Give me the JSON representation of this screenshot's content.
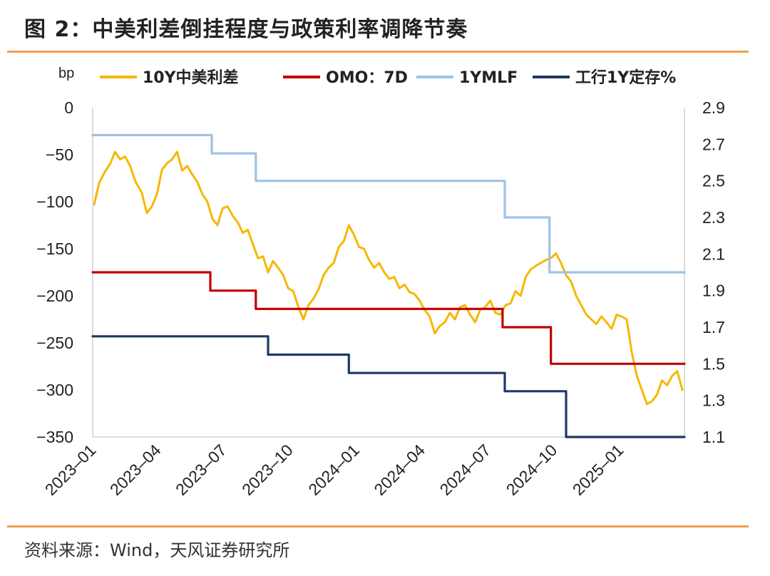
{
  "page": {
    "title": "图 2：中美利差倒挂程度与政策利率调降节奏",
    "source": "资料来源：Wind，天风证券研究所"
  },
  "chart_data": {
    "type": "line",
    "left_axis": {
      "unit": "bp",
      "range": [
        -350,
        0
      ],
      "ticks": [
        "0",
        "-50",
        "-100",
        "-150",
        "-200",
        "-250",
        "-300",
        "-350"
      ]
    },
    "right_axis": {
      "range": [
        1.1,
        2.9
      ],
      "ticks": [
        "2.9",
        "2.7",
        "2.5",
        "2.3",
        "2.1",
        "1.9",
        "1.7",
        "1.5",
        "1.3",
        "1.1"
      ]
    },
    "x_range": [
      "2023-01-01",
      "2025-03-31"
    ],
    "x_ticks": [
      "2023-01",
      "2023-04",
      "2023-07",
      "2023-10",
      "2024-01",
      "2024-04",
      "2024-07",
      "2024-10",
      "2025-01"
    ],
    "series": [
      {
        "name": "10Y中美利差",
        "color": "#f5b800",
        "axis": "left",
        "x": [
          "2023-01-03",
          "2023-01-10",
          "2023-01-18",
          "2023-01-25",
          "2023-02-01",
          "2023-02-08",
          "2023-02-15",
          "2023-02-22",
          "2023-03-01",
          "2023-03-06",
          "2023-03-10",
          "2023-03-17",
          "2023-03-24",
          "2023-03-31",
          "2023-04-07",
          "2023-04-14",
          "2023-04-21",
          "2023-04-28",
          "2023-05-05",
          "2023-05-12",
          "2023-05-19",
          "2023-05-26",
          "2023-06-02",
          "2023-06-09",
          "2023-06-16",
          "2023-06-23",
          "2023-06-30",
          "2023-07-07",
          "2023-07-14",
          "2023-07-21",
          "2023-07-28",
          "2023-08-04",
          "2023-08-11",
          "2023-08-18",
          "2023-08-25",
          "2023-09-01",
          "2023-09-08",
          "2023-09-15",
          "2023-09-22",
          "2023-09-29",
          "2023-10-06",
          "2023-10-13",
          "2023-10-20",
          "2023-10-27",
          "2023-11-03",
          "2023-11-10",
          "2023-11-17",
          "2023-11-24",
          "2023-12-01",
          "2023-12-08",
          "2023-12-15",
          "2023-12-22",
          "2023-12-29",
          "2024-01-05",
          "2024-01-12",
          "2024-01-19",
          "2024-01-26",
          "2024-02-02",
          "2024-02-09",
          "2024-02-16",
          "2024-02-23",
          "2024-03-01",
          "2024-03-08",
          "2024-03-15",
          "2024-03-22",
          "2024-03-29",
          "2024-04-05",
          "2024-04-12",
          "2024-04-19",
          "2024-04-26",
          "2024-05-03",
          "2024-05-10",
          "2024-05-17",
          "2024-05-24",
          "2024-05-31",
          "2024-06-07",
          "2024-06-14",
          "2024-06-21",
          "2024-06-28",
          "2024-07-05",
          "2024-07-12",
          "2024-07-19",
          "2024-07-26",
          "2024-08-02",
          "2024-08-09",
          "2024-08-16",
          "2024-08-23",
          "2024-08-30",
          "2024-09-06",
          "2024-09-13",
          "2024-09-20",
          "2024-09-27",
          "2024-10-04",
          "2024-10-11",
          "2024-10-18",
          "2024-10-25",
          "2024-11-01",
          "2024-11-08",
          "2024-11-15",
          "2024-11-22",
          "2024-11-29",
          "2024-12-06",
          "2024-12-13",
          "2024-12-20",
          "2024-12-27",
          "2025-01-03",
          "2025-01-10",
          "2025-01-17",
          "2025-01-24",
          "2025-01-31",
          "2025-02-07",
          "2025-02-14",
          "2025-02-21",
          "2025-02-28",
          "2025-03-07",
          "2025-03-14",
          "2025-03-21",
          "2025-03-28"
        ],
        "values": [
          -103,
          -80,
          -68,
          -60,
          -47,
          -55,
          -52,
          -62,
          -78,
          -85,
          -90,
          -112,
          -105,
          -92,
          -66,
          -59,
          -55,
          -47,
          -67,
          -62,
          -71,
          -79,
          -92,
          -100,
          -118,
          -125,
          -107,
          -105,
          -115,
          -122,
          -133,
          -130,
          -145,
          -160,
          -158,
          -175,
          -163,
          -170,
          -178,
          -192,
          -195,
          -212,
          -225,
          -210,
          -203,
          -193,
          -178,
          -170,
          -165,
          -148,
          -142,
          -125,
          -135,
          -148,
          -150,
          -162,
          -170,
          -165,
          -175,
          -182,
          -180,
          -192,
          -188,
          -196,
          -198,
          -205,
          -215,
          -222,
          -240,
          -232,
          -228,
          -218,
          -225,
          -212,
          -210,
          -220,
          -228,
          -215,
          -212,
          -205,
          -218,
          -220,
          -210,
          -208,
          -195,
          -200,
          -180,
          -172,
          -168,
          -165,
          -162,
          -160,
          -155,
          -165,
          -178,
          -185,
          -200,
          -210,
          -220,
          -225,
          -230,
          -222,
          -228,
          -235,
          -220,
          -222,
          -225,
          -260,
          -285,
          -300,
          -315,
          -312,
          -305,
          -290,
          -295,
          -285,
          -280,
          -300
        ]
      },
      {
        "name": "OMO：7D",
        "color": "#c00000",
        "axis": "right",
        "steps": [
          [
            "2023-01-01",
            2.0
          ],
          [
            "2023-06-13",
            1.9
          ],
          [
            "2023-08-15",
            1.8
          ],
          [
            "2024-07-22",
            1.7
          ],
          [
            "2024-09-27",
            1.5
          ],
          [
            "2025-03-31",
            1.5
          ]
        ]
      },
      {
        "name": "1YMLF",
        "color": "#9dc3e6",
        "axis": "right",
        "steps": [
          [
            "2023-01-01",
            2.75
          ],
          [
            "2023-06-15",
            2.65
          ],
          [
            "2023-08-15",
            2.5
          ],
          [
            "2024-07-25",
            2.3
          ],
          [
            "2024-09-25",
            2.0
          ],
          [
            "2025-03-31",
            2.0
          ]
        ]
      },
      {
        "name": "工行1Y定存%",
        "color": "#1f3864",
        "axis": "right",
        "steps": [
          [
            "2023-01-01",
            1.65
          ],
          [
            "2023-06-08",
            1.65
          ],
          [
            "2023-09-01",
            1.55
          ],
          [
            "2023-12-22",
            1.45
          ],
          [
            "2024-07-25",
            1.35
          ],
          [
            "2024-10-18",
            1.1
          ],
          [
            "2025-03-31",
            1.1
          ]
        ]
      }
    ]
  }
}
